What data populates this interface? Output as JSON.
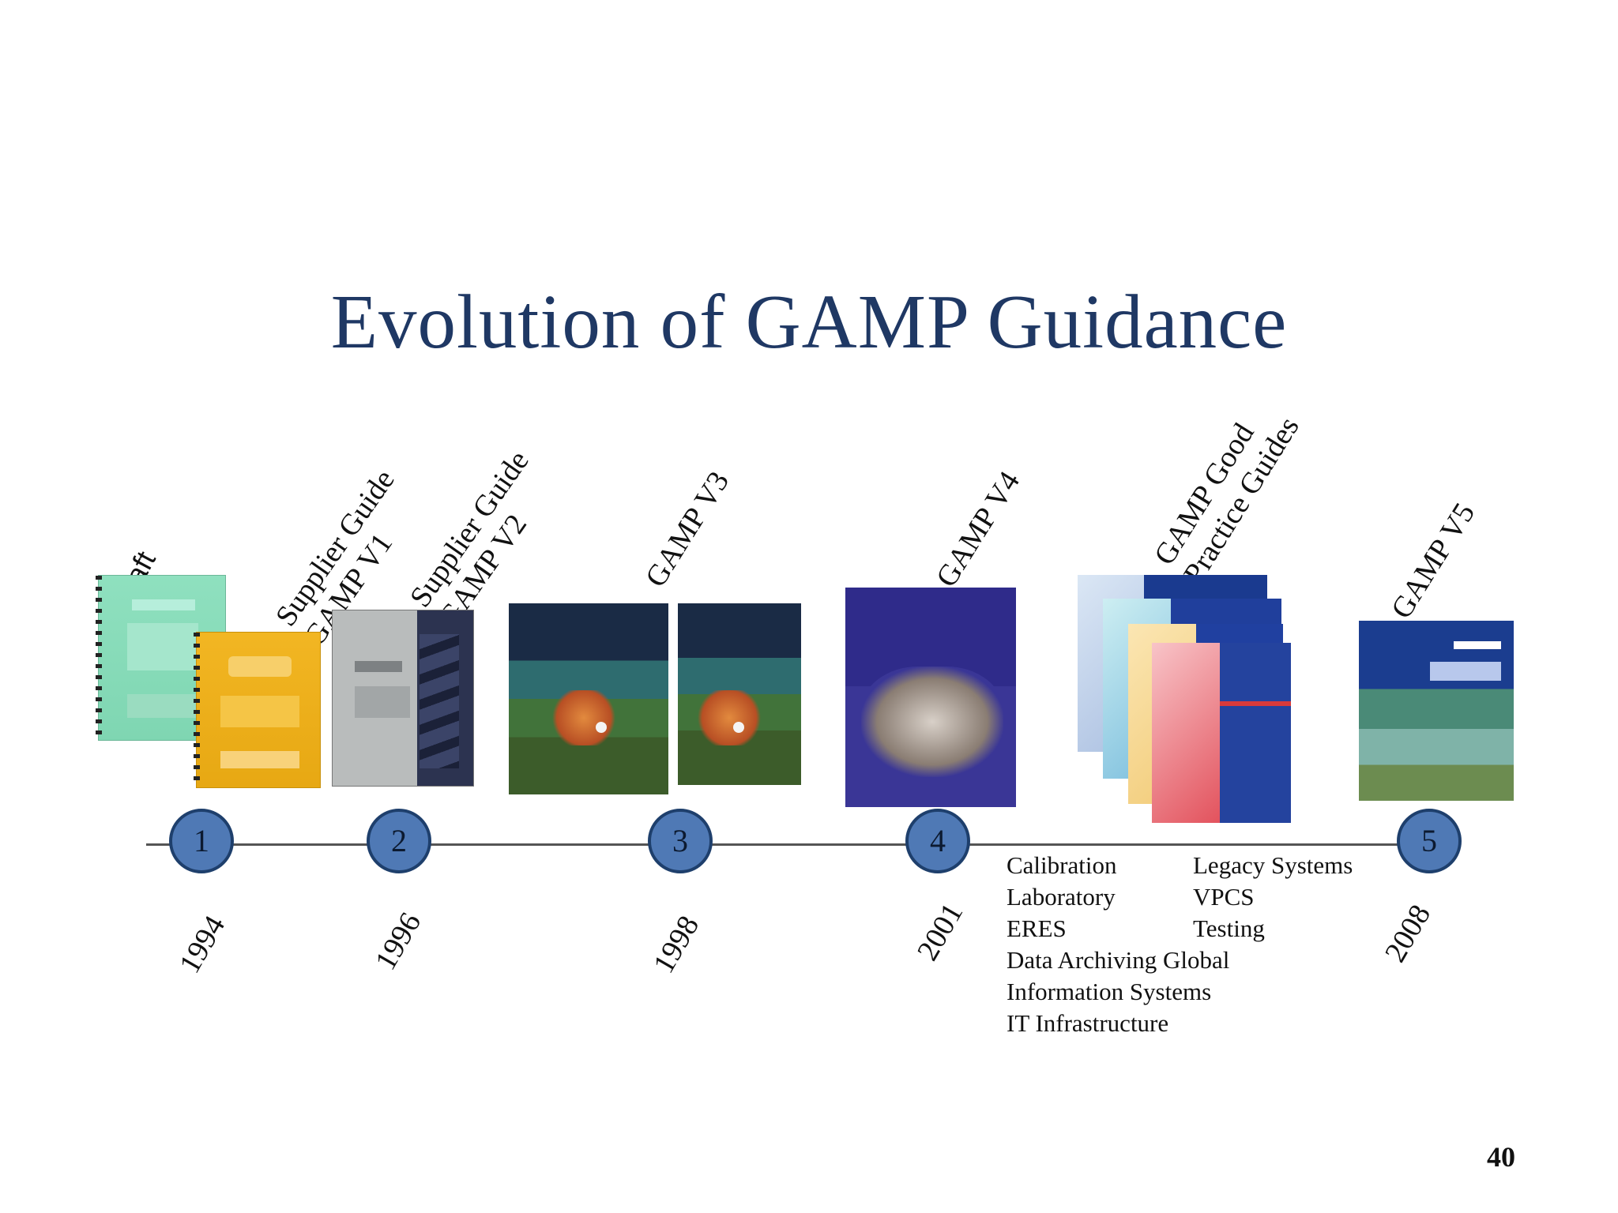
{
  "title": "Evolution of GAMP Guidance",
  "page_number": "40",
  "milestones": [
    {
      "number": "1",
      "year": "1994",
      "label_line1": "Draft",
      "label_line2": "",
      "label2_line1": "Supplier Guide",
      "label2_line2": "GAMP V1"
    },
    {
      "number": "2",
      "year": "1996",
      "label_line1": "Supplier Guide",
      "label_line2": "GAMP V2"
    },
    {
      "number": "3",
      "year": "1998",
      "label_line1": "GAMP V3"
    },
    {
      "number": "4",
      "year": "2001",
      "label_line1": "GAMP V4"
    },
    {
      "number": "5",
      "year": "2008",
      "label_line1": "GAMP V5"
    }
  ],
  "good_practice": {
    "label_line1": "GAMP Good",
    "label_line2": "Practice Guides",
    "guides": [
      [
        "Calibration",
        "Legacy  Systems"
      ],
      [
        "Laboratory",
        "VPCS"
      ],
      [
        "ERES",
        "Testing"
      ],
      [
        "Data Archiving Global",
        ""
      ],
      [
        "Information Systems",
        ""
      ],
      [
        "IT Infrastructure",
        ""
      ]
    ]
  },
  "colors": {
    "title": "#1f3864",
    "node_fill": "#4f79b5",
    "node_border": "#1e3f6c",
    "timeline": "#555555"
  }
}
